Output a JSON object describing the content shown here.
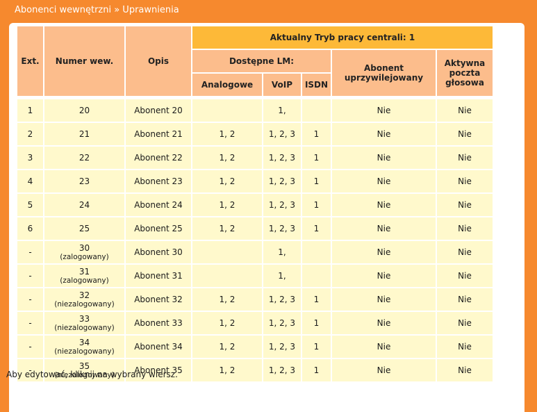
{
  "header": {
    "title": "Abonenci wewnętrzni » Uprawnienia"
  },
  "columns": {
    "ext": "Ext.",
    "number": "Numer wew.",
    "description": "Opis",
    "mode": "Aktualny Tryb pracy centrali: 1",
    "available_lm": "Dostępne LM:",
    "analog": "Analogowe",
    "voip": "VoIP",
    "isdn": "ISDN",
    "privileged": "Abonent uprzywilejowany",
    "voicemail": "Aktywna poczta głosowa"
  },
  "rows": [
    {
      "ext": "1",
      "number": "20",
      "status": "",
      "desc": "Abonent 20",
      "analog": "",
      "voip": "1,",
      "isdn": "",
      "privileged": "Nie",
      "voicemail": "Nie"
    },
    {
      "ext": "2",
      "number": "21",
      "status": "",
      "desc": "Abonent 21",
      "analog": "1, 2",
      "voip": "1, 2, 3",
      "isdn": "1",
      "privileged": "Nie",
      "voicemail": "Nie"
    },
    {
      "ext": "3",
      "number": "22",
      "status": "",
      "desc": "Abonent 22",
      "analog": "1, 2",
      "voip": "1, 2, 3",
      "isdn": "1",
      "privileged": "Nie",
      "voicemail": "Nie"
    },
    {
      "ext": "4",
      "number": "23",
      "status": "",
      "desc": "Abonent 23",
      "analog": "1, 2",
      "voip": "1, 2, 3",
      "isdn": "1",
      "privileged": "Nie",
      "voicemail": "Nie"
    },
    {
      "ext": "5",
      "number": "24",
      "status": "",
      "desc": "Abonent 24",
      "analog": "1, 2",
      "voip": "1, 2, 3",
      "isdn": "1",
      "privileged": "Nie",
      "voicemail": "Nie"
    },
    {
      "ext": "6",
      "number": "25",
      "status": "",
      "desc": "Abonent 25",
      "analog": "1, 2",
      "voip": "1, 2, 3",
      "isdn": "1",
      "privileged": "Nie",
      "voicemail": "Nie"
    },
    {
      "ext": "-",
      "number": "30",
      "status": "(zalogowany)",
      "desc": "Abonent 30",
      "analog": "",
      "voip": "1,",
      "isdn": "",
      "privileged": "Nie",
      "voicemail": "Nie"
    },
    {
      "ext": "-",
      "number": "31",
      "status": "(zalogowany)",
      "desc": "Abonent 31",
      "analog": "",
      "voip": "1,",
      "isdn": "",
      "privileged": "Nie",
      "voicemail": "Nie"
    },
    {
      "ext": "-",
      "number": "32",
      "status": "(niezalogowany)",
      "desc": "Abonent 32",
      "analog": "1, 2",
      "voip": "1, 2, 3",
      "isdn": "1",
      "privileged": "Nie",
      "voicemail": "Nie"
    },
    {
      "ext": "-",
      "number": "33",
      "status": "(niezalogowany)",
      "desc": "Abonent 33",
      "analog": "1, 2",
      "voip": "1, 2, 3",
      "isdn": "1",
      "privileged": "Nie",
      "voicemail": "Nie"
    },
    {
      "ext": "-",
      "number": "34",
      "status": "(niezalogowany)",
      "desc": "Abonent 34",
      "analog": "1, 2",
      "voip": "1, 2, 3",
      "isdn": "1",
      "privileged": "Nie",
      "voicemail": "Nie"
    },
    {
      "ext": "-",
      "number": "35",
      "status": "(niezalogowany)",
      "desc": "Abonent 35",
      "analog": "1, 2",
      "voip": "1, 2, 3",
      "isdn": "1",
      "privileged": "Nie",
      "voicemail": "Nie"
    }
  ],
  "footer": {
    "hint": "Aby edytować, kliknij na wybrany wiersz."
  },
  "colors": {
    "frame": "#f6892e",
    "header_cell": "#fcbd8c",
    "mode_cell": "#fdb938",
    "row_cell": "#fff9cc"
  }
}
